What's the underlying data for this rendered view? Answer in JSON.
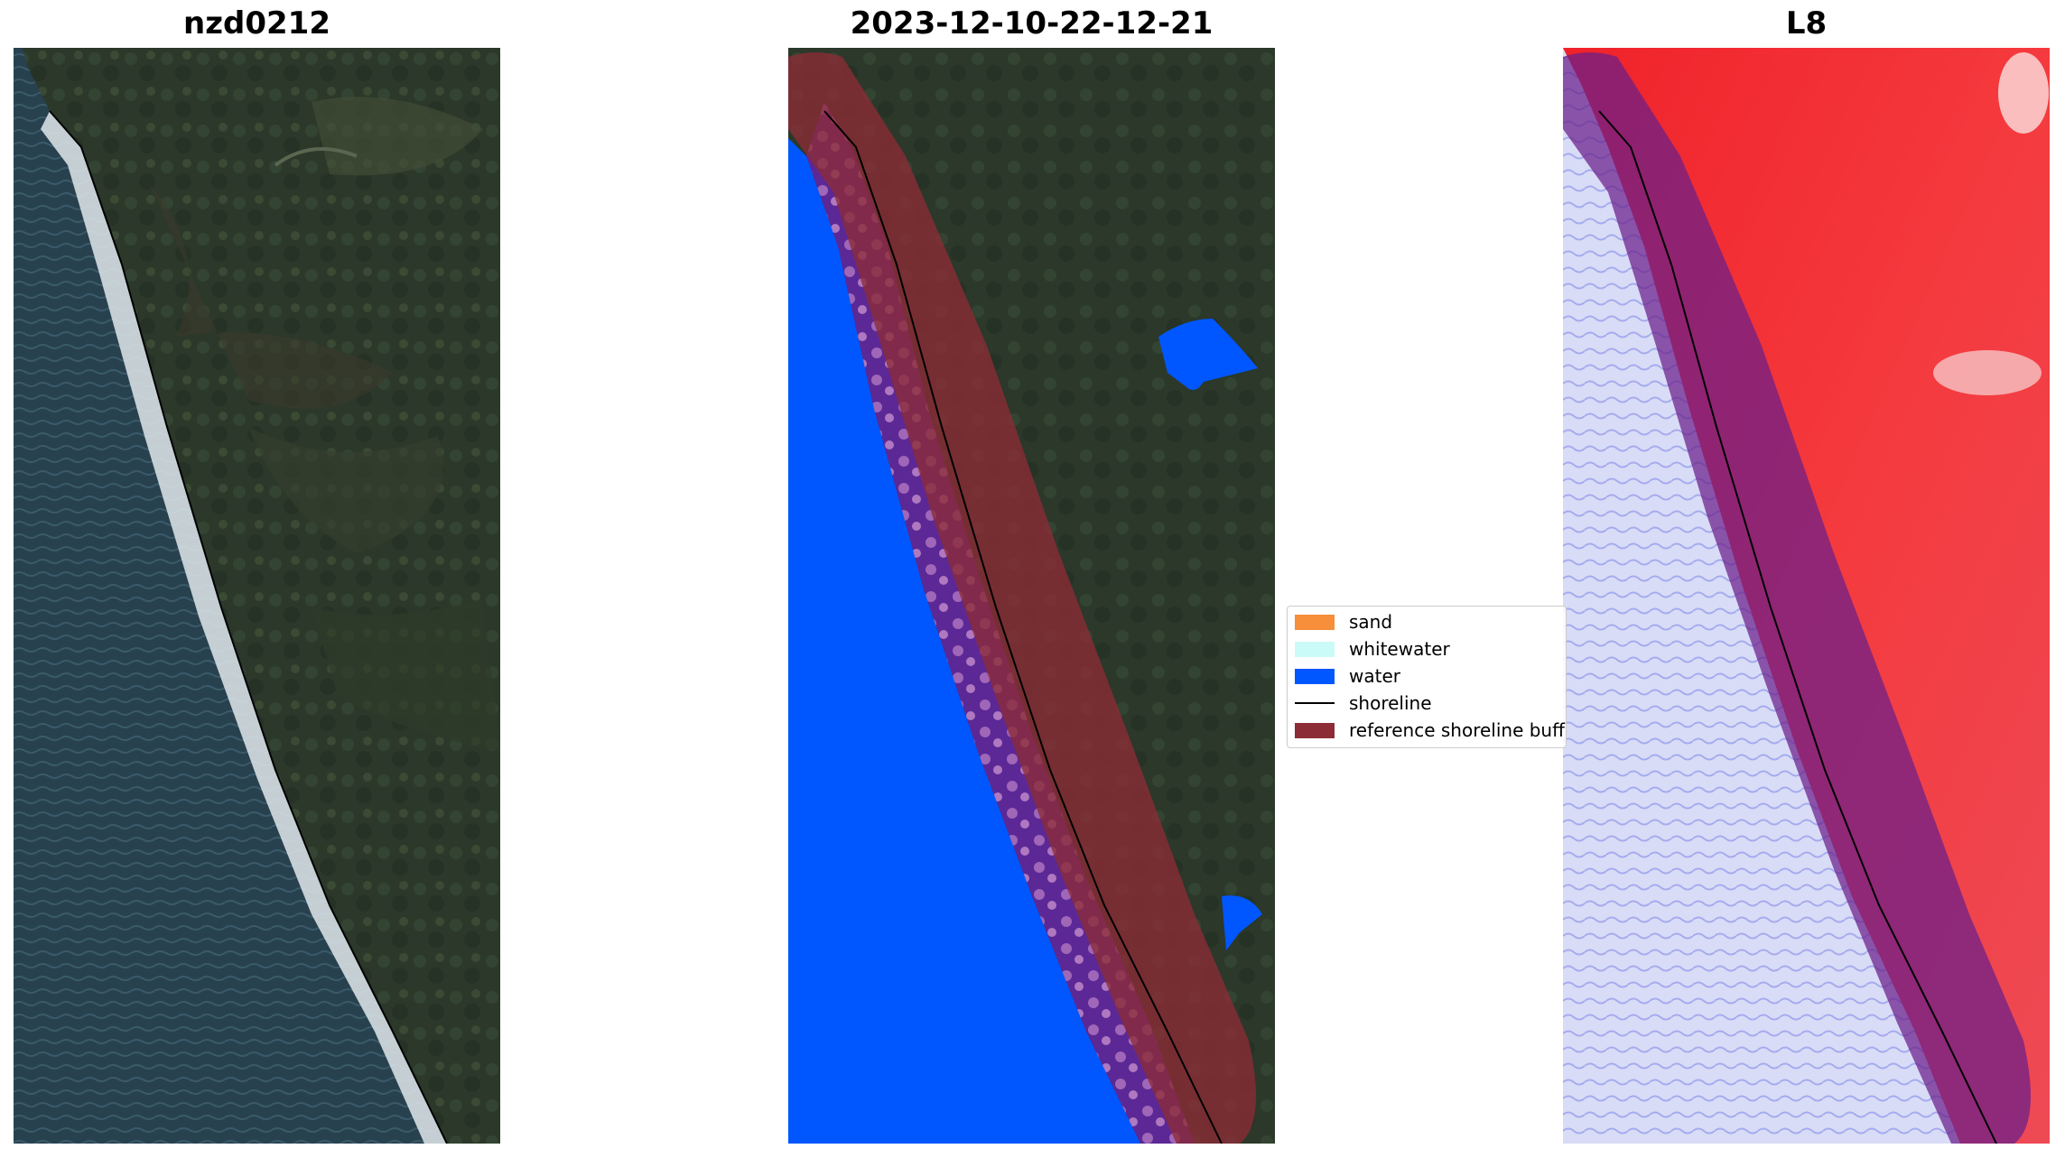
{
  "panels": [
    {
      "title": "nzd0212",
      "description": "RGB satellite image of coastline"
    },
    {
      "title": "2023-12-10-22-12-21",
      "description": "classified image with buffer overlay"
    },
    {
      "title": "L8",
      "description": "water index image with buffer overlay"
    }
  ],
  "legend": {
    "items": [
      {
        "label": "sand",
        "kind": "patch",
        "color": "#f68e3a"
      },
      {
        "label": "whitewater",
        "kind": "patch",
        "color": "#cbfbf8"
      },
      {
        "label": "water",
        "kind": "patch",
        "color": "#0057ff"
      },
      {
        "label": "shoreline",
        "kind": "line",
        "color": "#000000"
      },
      {
        "label": "reference shoreline buffer",
        "kind": "patch",
        "color": "#8c2c36"
      }
    ]
  },
  "colors": {
    "ocean": "#2a4452",
    "land": "#2d3a2c",
    "surf": "#e9eef0",
    "class_water": "#0057ff",
    "buffer": "#8c2c36",
    "index_land": "#f2222a",
    "index_water": "#d6daf6"
  }
}
